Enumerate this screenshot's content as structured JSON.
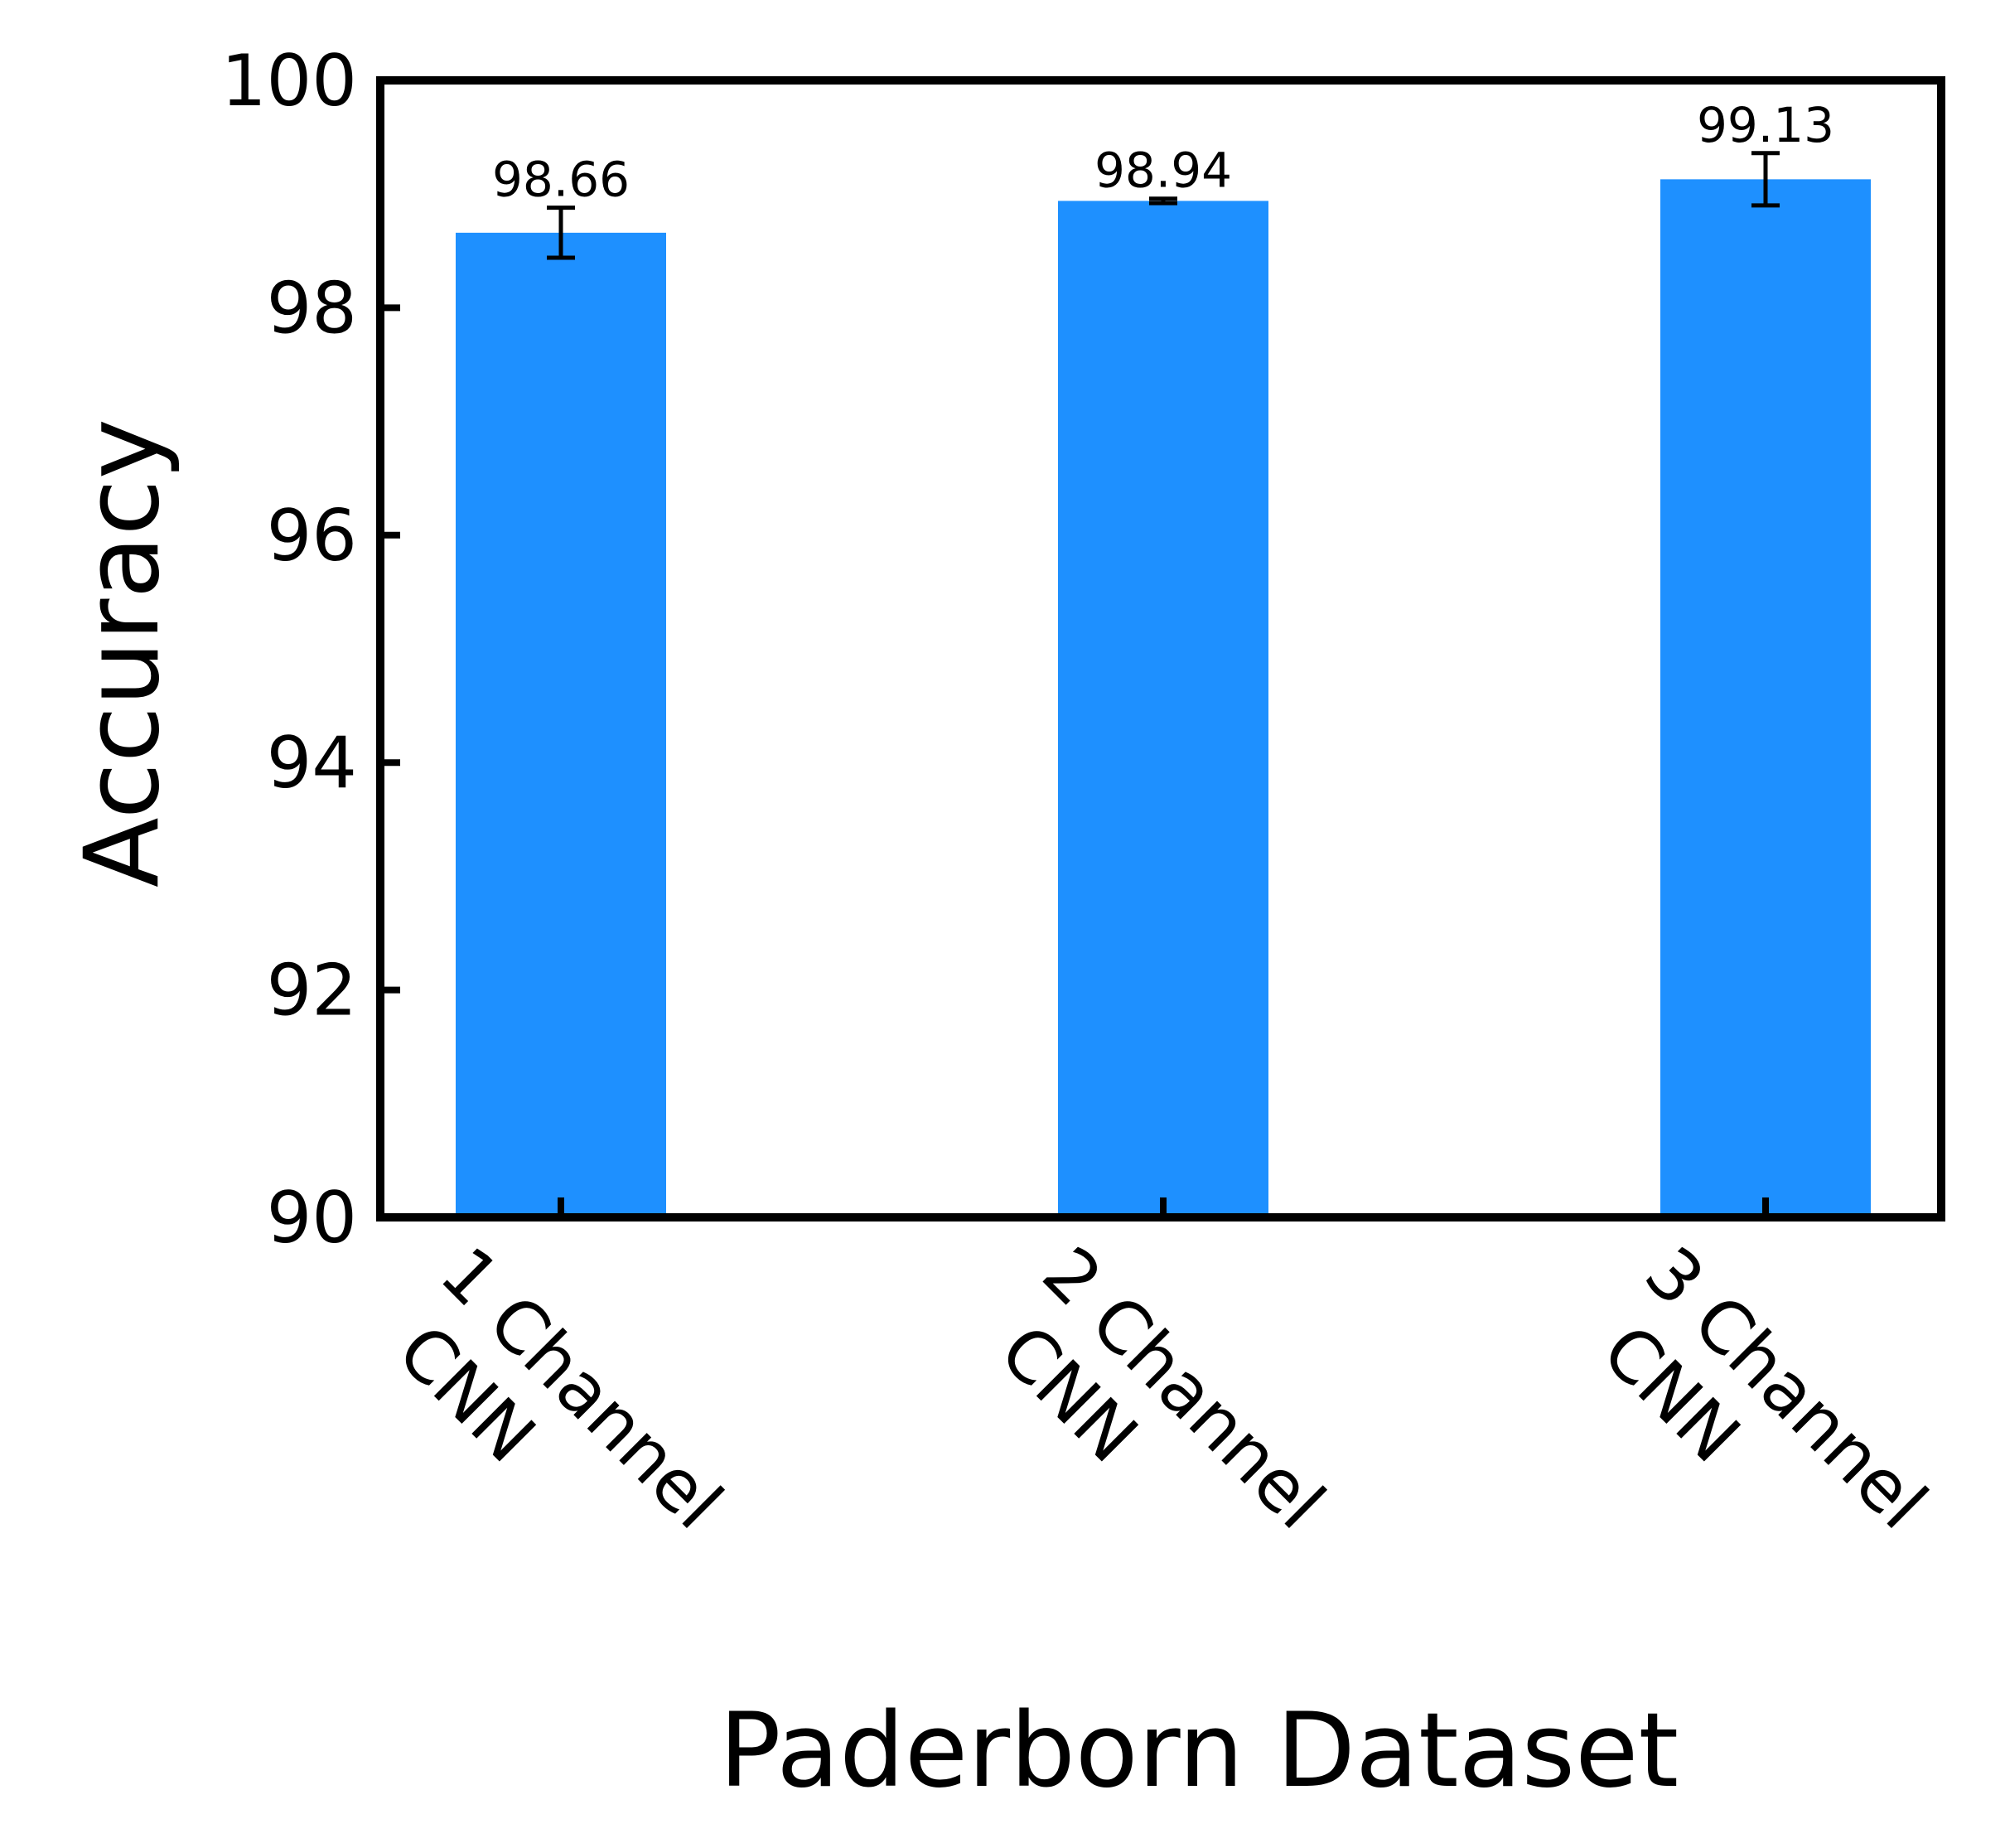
{
  "chart_data": {
    "type": "bar",
    "categories": [
      [
        "1 Channel",
        "CNN"
      ],
      [
        "2 Channel",
        "CNN"
      ],
      [
        "3 Channel",
        "CNN"
      ]
    ],
    "values": [
      98.66,
      98.94,
      99.13
    ],
    "errors": [
      0.22,
      0.02,
      0.23
    ],
    "data_labels": [
      "98.66",
      "98.94",
      "99.13"
    ],
    "xlabel": "Paderborn Dataset",
    "ylabel": "Accuracy",
    "ylim": [
      90,
      100
    ],
    "yticks": [
      90,
      92,
      94,
      96,
      98,
      100
    ],
    "ytick_labels": [
      "90",
      "92",
      "94",
      "96",
      "98",
      "100"
    ],
    "bar_color": "#1e90ff",
    "axis_color": "#000000",
    "grid": false,
    "legend": "none"
  }
}
